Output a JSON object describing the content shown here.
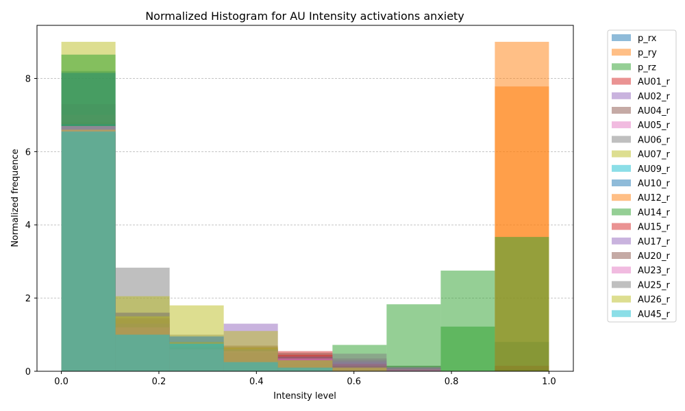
{
  "chart_data": {
    "type": "bar",
    "title": "Normalized Histogram for AU Intensity activations anxiety",
    "xlabel": "Intensity level",
    "ylabel": "Normalized frequence",
    "xlim": [
      -0.05,
      1.05
    ],
    "ylim": [
      0,
      9.45
    ],
    "xticks": [
      0.0,
      0.2,
      0.4,
      0.6,
      0.8,
      1.0
    ],
    "xtick_labels": [
      "0.0",
      "0.2",
      "0.4",
      "0.6",
      "0.8",
      "1.0"
    ],
    "yticks": [
      0,
      2,
      4,
      6,
      8
    ],
    "ytick_labels": [
      "0",
      "2",
      "4",
      "6",
      "8"
    ],
    "grid": "horizontal dashed",
    "legend_position": "outside right",
    "bin_edges": [
      0.0,
      0.111,
      0.222,
      0.333,
      0.444,
      0.556,
      0.667,
      0.778,
      0.889,
      1.0
    ],
    "series": [
      {
        "name": "p_rx",
        "color": "#1f77b4",
        "values": [
          8.2,
          0.0,
          0.0,
          0.0,
          0.0,
          0.0,
          0.0,
          0.0,
          0.8
        ]
      },
      {
        "name": "p_ry",
        "color": "#ff7f0e",
        "values": [
          0.0,
          0.0,
          0.0,
          0.0,
          0.0,
          0.0,
          0.0,
          0.0,
          9.0
        ]
      },
      {
        "name": "p_rz",
        "color": "#2ca02c",
        "values": [
          3.65,
          0.0,
          0.0,
          0.0,
          0.0,
          0.72,
          1.83,
          2.75,
          0.05
        ]
      },
      {
        "name": "AU01_r",
        "color": "#d62728",
        "values": [
          6.5,
          1.4,
          0.6,
          0.5,
          0.55,
          0.2,
          0.1,
          0.0,
          0.15
        ]
      },
      {
        "name": "AU02_r",
        "color": "#9467bd",
        "values": [
          7.3,
          1.2,
          0.5,
          1.3,
          0.4,
          0.3,
          0.05,
          0.0,
          0.0
        ]
      },
      {
        "name": "AU04_r",
        "color": "#8c564b",
        "values": [
          6.8,
          1.6,
          0.7,
          0.7,
          0.5,
          0.1,
          0.0,
          0.0,
          0.0
        ]
      },
      {
        "name": "AU05_r",
        "color": "#e377c2",
        "values": [
          7.0,
          1.3,
          0.5,
          0.6,
          0.3,
          0.1,
          0.05,
          0.0,
          0.0
        ]
      },
      {
        "name": "AU06_r",
        "color": "#7f7f7f",
        "values": [
          6.5,
          2.83,
          1.0,
          0.6,
          0.2,
          0.48,
          0.15,
          0.0,
          0.0
        ]
      },
      {
        "name": "AU07_r",
        "color": "#bcbd22",
        "values": [
          9.0,
          2.05,
          1.8,
          1.1,
          0.3,
          0.05,
          0.0,
          0.0,
          0.0
        ]
      },
      {
        "name": "AU09_r",
        "color": "#17becf",
        "values": [
          6.75,
          0.95,
          0.95,
          0.3,
          0.1,
          0.0,
          0.0,
          0.0,
          0.0
        ]
      },
      {
        "name": "AU10_r",
        "color": "#1f77b4",
        "values": [
          8.15,
          1.0,
          0.8,
          0.3,
          0.1,
          0.05,
          0.0,
          0.0,
          0.0
        ]
      },
      {
        "name": "AU12_r",
        "color": "#ff7f0e",
        "values": [
          0.0,
          0.0,
          0.0,
          0.0,
          0.0,
          0.0,
          0.0,
          0.0,
          7.78
        ]
      },
      {
        "name": "AU14_r",
        "color": "#2ca02c",
        "values": [
          8.65,
          0.95,
          0.7,
          0.3,
          0.05,
          0.0,
          0.15,
          1.22,
          3.67
        ]
      },
      {
        "name": "AU15_r",
        "color": "#d62728",
        "values": [
          6.5,
          1.2,
          0.6,
          0.5,
          0.45,
          0.2,
          0.05,
          0.0,
          0.0
        ]
      },
      {
        "name": "AU17_r",
        "color": "#9467bd",
        "values": [
          6.6,
          1.3,
          0.7,
          0.6,
          0.4,
          0.25,
          0.1,
          0.0,
          0.0
        ]
      },
      {
        "name": "AU20_r",
        "color": "#8c564b",
        "values": [
          6.55,
          1.45,
          0.65,
          0.65,
          0.4,
          0.15,
          0.05,
          0.0,
          0.0
        ]
      },
      {
        "name": "AU23_r",
        "color": "#e377c2",
        "values": [
          6.7,
          1.2,
          0.6,
          0.55,
          0.35,
          0.1,
          0.05,
          0.0,
          0.0
        ]
      },
      {
        "name": "AU25_r",
        "color": "#7f7f7f",
        "values": [
          6.5,
          1.6,
          0.95,
          0.6,
          0.3,
          0.35,
          0.12,
          0.0,
          0.0
        ]
      },
      {
        "name": "AU26_r",
        "color": "#bcbd22",
        "values": [
          6.6,
          1.5,
          0.8,
          0.65,
          0.3,
          0.1,
          0.0,
          0.0,
          0.0
        ]
      },
      {
        "name": "AU45_r",
        "color": "#17becf",
        "values": [
          6.55,
          1.0,
          0.75,
          0.25,
          0.1,
          0.0,
          0.0,
          0.0,
          0.0
        ]
      }
    ]
  }
}
